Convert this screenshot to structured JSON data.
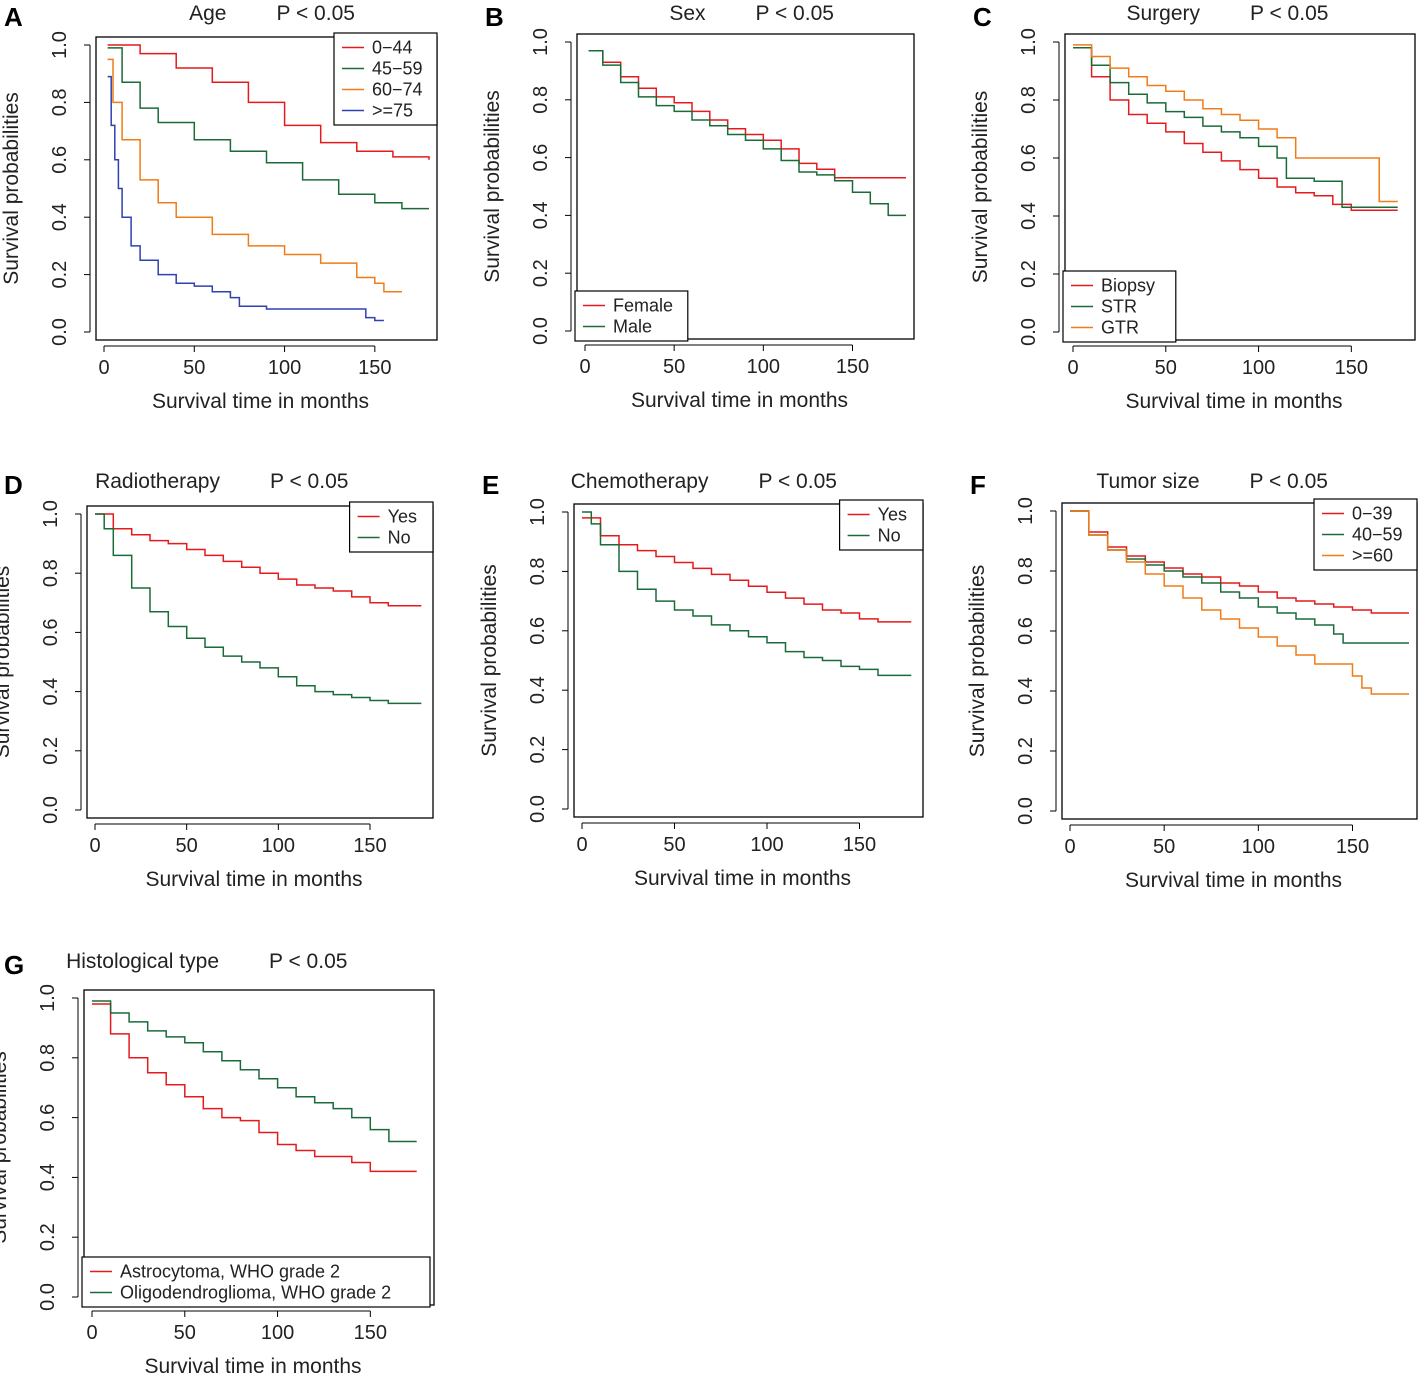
{
  "figure": {
    "y_axis_label": "Survival probabilities",
    "x_axis_label": "Survival time in months"
  },
  "chart_data": [
    {
      "type": "line",
      "panel": "A",
      "title": "Age",
      "pvalue": "P < 0.05",
      "xlabel": "Survival time in months",
      "ylabel": "Survival probabilities",
      "xlim": [
        0,
        180
      ],
      "ylim": [
        0,
        1
      ],
      "xticks": [
        "0",
        "50",
        "100",
        "150"
      ],
      "yticks": [
        "0.0",
        "0.2",
        "0.4",
        "0.6",
        "0.8",
        "1.0"
      ],
      "legend_position": "top-right",
      "series": [
        {
          "name": "0−44",
          "color": "#e41a1c",
          "x": [
            2,
            20,
            40,
            60,
            80,
            100,
            120,
            140,
            160,
            180
          ],
          "y": [
            1.0,
            0.97,
            0.92,
            0.87,
            0.8,
            0.72,
            0.66,
            0.63,
            0.61,
            0.6
          ]
        },
        {
          "name": "45−59",
          "color": "#1b6b3a",
          "x": [
            2,
            10,
            20,
            30,
            50,
            70,
            90,
            110,
            130,
            150,
            165,
            180
          ],
          "y": [
            0.99,
            0.87,
            0.78,
            0.73,
            0.67,
            0.63,
            0.59,
            0.53,
            0.48,
            0.45,
            0.43,
            0.43
          ]
        },
        {
          "name": "60−74",
          "color": "#f07c18",
          "x": [
            2,
            5,
            10,
            20,
            30,
            40,
            60,
            80,
            100,
            120,
            140,
            150,
            155,
            165
          ],
          "y": [
            0.95,
            0.8,
            0.67,
            0.53,
            0.45,
            0.4,
            0.34,
            0.3,
            0.27,
            0.24,
            0.19,
            0.17,
            0.14,
            0.14
          ]
        },
        {
          "name": ">=75",
          "color": "#3040b0",
          "x": [
            2,
            4,
            6,
            8,
            10,
            15,
            20,
            30,
            40,
            50,
            60,
            70,
            75,
            90,
            110,
            130,
            145,
            150,
            155
          ],
          "y": [
            0.89,
            0.72,
            0.6,
            0.5,
            0.4,
            0.3,
            0.25,
            0.2,
            0.17,
            0.16,
            0.14,
            0.12,
            0.09,
            0.08,
            0.08,
            0.08,
            0.05,
            0.04,
            0.04
          ]
        }
      ]
    },
    {
      "type": "line",
      "panel": "B",
      "title": "Sex",
      "pvalue": "P < 0.05",
      "xlabel": "Survival time in months",
      "ylabel": "Survival probabilities",
      "xlim": [
        0,
        180
      ],
      "ylim": [
        0,
        1
      ],
      "xticks": [
        "0",
        "50",
        "100",
        "150"
      ],
      "yticks": [
        "0.0",
        "0.2",
        "0.4",
        "0.6",
        "0.8",
        "1.0"
      ],
      "legend_position": "bottom-left",
      "series": [
        {
          "name": "Female",
          "color": "#e41a1c",
          "x": [
            2,
            10,
            20,
            30,
            40,
            50,
            60,
            70,
            80,
            90,
            100,
            110,
            120,
            130,
            140,
            160,
            180
          ],
          "y": [
            0.97,
            0.93,
            0.88,
            0.84,
            0.81,
            0.79,
            0.76,
            0.73,
            0.7,
            0.68,
            0.66,
            0.63,
            0.58,
            0.56,
            0.53,
            0.53,
            0.53
          ]
        },
        {
          "name": "Male",
          "color": "#1b6b3a",
          "x": [
            2,
            10,
            20,
            30,
            40,
            50,
            60,
            70,
            80,
            90,
            100,
            110,
            120,
            130,
            140,
            150,
            160,
            170,
            180
          ],
          "y": [
            0.97,
            0.92,
            0.86,
            0.81,
            0.78,
            0.76,
            0.73,
            0.71,
            0.68,
            0.66,
            0.63,
            0.59,
            0.55,
            0.54,
            0.52,
            0.48,
            0.44,
            0.4,
            0.4
          ]
        }
      ]
    },
    {
      "type": "line",
      "panel": "C",
      "title": "Surgery",
      "pvalue": "P < 0.05",
      "xlabel": "Survival time in months",
      "ylabel": "Survival probabilities",
      "xlim": [
        0,
        180
      ],
      "ylim": [
        0,
        1
      ],
      "xticks": [
        "0",
        "50",
        "100",
        "150"
      ],
      "yticks": [
        "0.0",
        "0.2",
        "0.4",
        "0.6",
        "0.8",
        "1.0"
      ],
      "legend_position": "bottom-left",
      "series": [
        {
          "name": "Biopsy",
          "color": "#e41a1c",
          "x": [
            0,
            10,
            20,
            30,
            40,
            50,
            60,
            70,
            80,
            90,
            100,
            110,
            120,
            130,
            140,
            150,
            160,
            175
          ],
          "y": [
            0.98,
            0.88,
            0.8,
            0.75,
            0.72,
            0.69,
            0.65,
            0.62,
            0.59,
            0.56,
            0.53,
            0.5,
            0.48,
            0.47,
            0.44,
            0.42,
            0.42,
            0.42
          ]
        },
        {
          "name": "STR",
          "color": "#1b6b3a",
          "x": [
            0,
            10,
            20,
            30,
            40,
            50,
            60,
            70,
            80,
            90,
            100,
            110,
            115,
            120,
            125,
            130,
            140,
            145,
            150,
            175
          ],
          "y": [
            0.98,
            0.92,
            0.86,
            0.82,
            0.79,
            0.76,
            0.74,
            0.71,
            0.69,
            0.67,
            0.64,
            0.6,
            0.53,
            0.53,
            0.53,
            0.52,
            0.52,
            0.43,
            0.43,
            0.43
          ]
        },
        {
          "name": "GTR",
          "color": "#f07c18",
          "x": [
            0,
            10,
            20,
            30,
            40,
            50,
            60,
            70,
            80,
            90,
            100,
            110,
            120,
            130,
            140,
            150,
            160,
            165,
            175
          ],
          "y": [
            0.99,
            0.95,
            0.91,
            0.88,
            0.85,
            0.83,
            0.8,
            0.77,
            0.75,
            0.73,
            0.7,
            0.67,
            0.6,
            0.6,
            0.6,
            0.6,
            0.6,
            0.45,
            0.45
          ]
        }
      ]
    },
    {
      "type": "line",
      "panel": "D",
      "title": "Radiotherapy",
      "pvalue": "P < 0.05",
      "xlabel": "Survival time in months",
      "ylabel": "Survival probabilities",
      "xlim": [
        0,
        180
      ],
      "ylim": [
        0,
        1
      ],
      "xticks": [
        "0",
        "50",
        "100",
        "150"
      ],
      "yticks": [
        "0.0",
        "0.2",
        "0.4",
        "0.6",
        "0.8",
        "1.0"
      ],
      "legend_position": "top-right",
      "series": [
        {
          "name": "Yes",
          "color": "#e41a1c",
          "x": [
            0,
            10,
            20,
            30,
            40,
            50,
            60,
            70,
            80,
            90,
            100,
            110,
            120,
            130,
            140,
            150,
            160,
            178
          ],
          "y": [
            1.0,
            0.95,
            0.93,
            0.91,
            0.9,
            0.88,
            0.86,
            0.84,
            0.82,
            0.8,
            0.78,
            0.76,
            0.75,
            0.74,
            0.72,
            0.7,
            0.69,
            0.69
          ]
        },
        {
          "name": "No",
          "color": "#1b6b3a",
          "x": [
            0,
            5,
            10,
            20,
            30,
            40,
            50,
            60,
            70,
            80,
            90,
            100,
            110,
            120,
            130,
            140,
            150,
            160,
            178
          ],
          "y": [
            1.0,
            0.95,
            0.86,
            0.75,
            0.67,
            0.62,
            0.58,
            0.55,
            0.52,
            0.5,
            0.48,
            0.45,
            0.42,
            0.4,
            0.39,
            0.38,
            0.37,
            0.36,
            0.36
          ]
        }
      ]
    },
    {
      "type": "line",
      "panel": "E",
      "title": "Chemotherapy",
      "pvalue": "P < 0.05",
      "xlabel": "Survival time in months",
      "ylabel": "Survival probabilities",
      "xlim": [
        0,
        180
      ],
      "ylim": [
        0,
        1
      ],
      "xticks": [
        "0",
        "50",
        "100",
        "150"
      ],
      "yticks": [
        "0.0",
        "0.2",
        "0.4",
        "0.6",
        "0.8",
        "1.0"
      ],
      "legend_position": "top-right",
      "series": [
        {
          "name": "Yes",
          "color": "#e41a1c",
          "x": [
            0,
            10,
            20,
            30,
            40,
            50,
            60,
            70,
            80,
            90,
            100,
            110,
            120,
            130,
            140,
            150,
            160,
            178
          ],
          "y": [
            0.98,
            0.92,
            0.89,
            0.87,
            0.85,
            0.83,
            0.81,
            0.79,
            0.77,
            0.75,
            0.73,
            0.71,
            0.69,
            0.67,
            0.66,
            0.64,
            0.63,
            0.63
          ]
        },
        {
          "name": "No",
          "color": "#1b6b3a",
          "x": [
            0,
            5,
            10,
            20,
            30,
            40,
            50,
            60,
            70,
            80,
            90,
            100,
            110,
            120,
            130,
            140,
            150,
            160,
            178
          ],
          "y": [
            1.0,
            0.96,
            0.89,
            0.8,
            0.74,
            0.7,
            0.67,
            0.65,
            0.62,
            0.6,
            0.58,
            0.56,
            0.53,
            0.51,
            0.5,
            0.48,
            0.47,
            0.45,
            0.45
          ]
        }
      ]
    },
    {
      "type": "line",
      "panel": "F",
      "title": "Tumor size",
      "pvalue": "P < 0.05",
      "xlabel": "Survival time in months",
      "ylabel": "Survival probabilities",
      "xlim": [
        0,
        180
      ],
      "ylim": [
        0,
        1
      ],
      "xticks": [
        "0",
        "50",
        "100",
        "150"
      ],
      "yticks": [
        "0.0",
        "0.2",
        "0.4",
        "0.6",
        "0.8",
        "1.0"
      ],
      "legend_position": "top-right",
      "series": [
        {
          "name": "0−39",
          "color": "#e41a1c",
          "x": [
            0,
            10,
            20,
            30,
            40,
            50,
            60,
            70,
            80,
            90,
            100,
            110,
            120,
            130,
            140,
            150,
            160,
            180
          ],
          "y": [
            1.0,
            0.93,
            0.88,
            0.85,
            0.83,
            0.81,
            0.79,
            0.78,
            0.76,
            0.75,
            0.73,
            0.71,
            0.7,
            0.69,
            0.68,
            0.67,
            0.66,
            0.66
          ]
        },
        {
          "name": "40−59",
          "color": "#1b6b3a",
          "x": [
            0,
            10,
            20,
            30,
            40,
            50,
            60,
            70,
            80,
            90,
            100,
            110,
            120,
            130,
            140,
            145,
            160,
            180
          ],
          "y": [
            1.0,
            0.92,
            0.87,
            0.84,
            0.82,
            0.8,
            0.78,
            0.76,
            0.73,
            0.71,
            0.68,
            0.66,
            0.64,
            0.62,
            0.59,
            0.56,
            0.56,
            0.56
          ]
        },
        {
          "name": ">=60",
          "color": "#f07c18",
          "x": [
            0,
            10,
            20,
            30,
            40,
            50,
            60,
            70,
            80,
            90,
            100,
            110,
            120,
            130,
            140,
            150,
            155,
            160,
            180
          ],
          "y": [
            1.0,
            0.92,
            0.87,
            0.83,
            0.79,
            0.75,
            0.71,
            0.67,
            0.64,
            0.61,
            0.58,
            0.55,
            0.52,
            0.49,
            0.49,
            0.45,
            0.41,
            0.39,
            0.39
          ]
        }
      ]
    },
    {
      "type": "line",
      "panel": "G",
      "title": "Histological type",
      "pvalue": "P < 0.05",
      "xlabel": "Survival time in months",
      "ylabel": "Survival probabilities",
      "xlim": [
        0,
        180
      ],
      "ylim": [
        0,
        1
      ],
      "xticks": [
        "0",
        "50",
        "100",
        "150"
      ],
      "yticks": [
        "0.0",
        "0.2",
        "0.4",
        "0.6",
        "0.8",
        "1.0"
      ],
      "legend_position": "bottom-left",
      "series": [
        {
          "name": "Astrocytoma, WHO grade 2",
          "color": "#e41a1c",
          "x": [
            0,
            10,
            20,
            30,
            40,
            50,
            60,
            70,
            80,
            90,
            100,
            110,
            120,
            130,
            140,
            150,
            160,
            175
          ],
          "y": [
            0.98,
            0.88,
            0.8,
            0.75,
            0.71,
            0.67,
            0.63,
            0.6,
            0.59,
            0.55,
            0.51,
            0.49,
            0.47,
            0.47,
            0.45,
            0.42,
            0.42,
            0.42
          ]
        },
        {
          "name": "Oligodendroglioma, WHO grade 2",
          "color": "#1b6b3a",
          "x": [
            0,
            10,
            20,
            30,
            40,
            50,
            60,
            70,
            80,
            90,
            100,
            110,
            120,
            130,
            140,
            150,
            160,
            175
          ],
          "y": [
            0.99,
            0.95,
            0.92,
            0.89,
            0.87,
            0.85,
            0.82,
            0.79,
            0.76,
            0.73,
            0.7,
            0.67,
            0.65,
            0.63,
            0.6,
            0.56,
            0.52,
            0.52
          ]
        }
      ]
    }
  ]
}
